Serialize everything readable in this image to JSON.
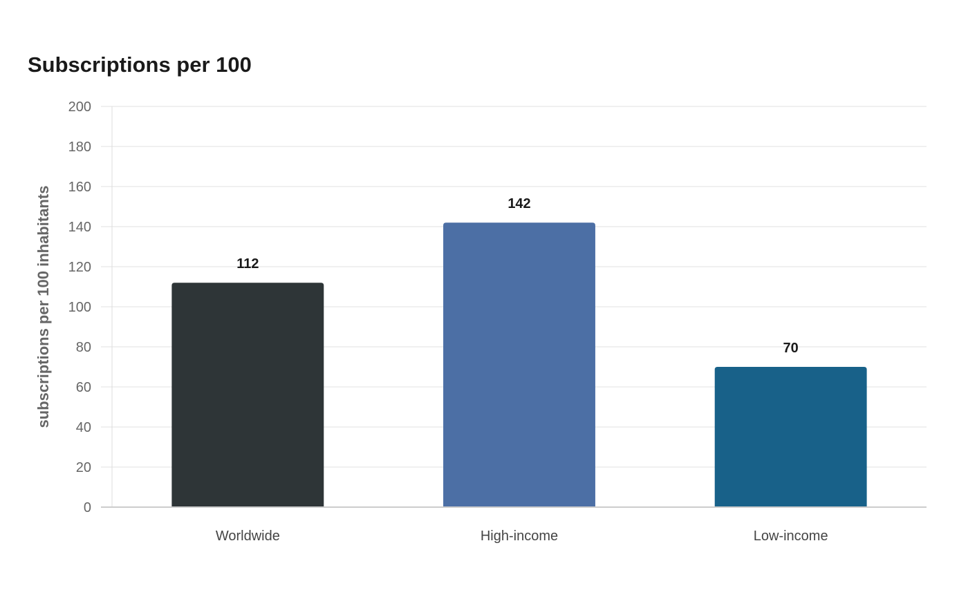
{
  "chart_data": {
    "type": "bar",
    "title": "Subscriptions per 100",
    "xlabel": "",
    "ylabel": "subscriptions per 100 inhabitants",
    "categories": [
      "Worldwide",
      "High-income",
      "Low-income"
    ],
    "values": [
      112,
      142,
      70
    ],
    "colors": [
      "#2e3537",
      "#4c6fa5",
      "#186189"
    ],
    "ylim": [
      0,
      200
    ],
    "yticks": [
      0,
      20,
      40,
      60,
      80,
      100,
      120,
      140,
      160,
      180,
      200
    ],
    "grid": true,
    "legend": "none"
  }
}
